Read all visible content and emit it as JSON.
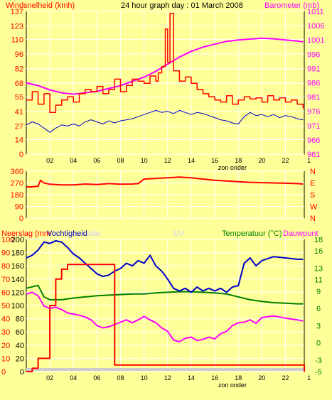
{
  "header": {
    "left_label": "Windsnelheid (kmh)",
    "title": "24 hour graph day : 01 March 2008",
    "right_label": "Barometer (mb)"
  },
  "bottom_labels": {
    "neerslag": "Neerslag (mm",
    "vochtigheid": "Vochtigheid",
    "solar": "olar",
    "uv": "UV",
    "temperatuur": "Temperatuur (°C)",
    "dauwpunt": "Dauwpunt"
  },
  "colors": {
    "background": "#ffff99",
    "plot_border": "#000000",
    "grid": "#ffffff",
    "wind_gust": "#ff0000",
    "wind_avg": "#0000cc",
    "barometer": "#ff00ff",
    "wind_dir": "#ff0000",
    "rain": "#ff0000",
    "humidity": "#0000cc",
    "temperature": "#008000",
    "dewpoint": "#ff00ff",
    "left_axis_text": "#ff0000",
    "right_axis_text_top": "#ff00ff",
    "right_axis_text_bottom": "#008000",
    "uv_solar_text": "#ccccff"
  },
  "chart_data": [
    {
      "type": "line",
      "name": "wind-barometer",
      "x_tick_labels": [
        "02",
        "04",
        "06",
        "08",
        "10",
        "12",
        "14",
        "16",
        "18",
        "20",
        "22",
        "1"
      ],
      "x_caption": "zon onder",
      "ylim": [
        0,
        137
      ],
      "y_ticks": [
        0,
        14,
        27,
        41,
        55,
        68,
        82,
        96,
        110,
        123,
        137
      ],
      "y2lim": [
        961,
        1011
      ],
      "y2_ticks": [
        961,
        966,
        971,
        976,
        981,
        986,
        991,
        996,
        1001,
        1006,
        1011
      ],
      "series": [
        {
          "name": "Windsnelheid (kmh)",
          "axis": "left",
          "x": [
            0,
            0.5,
            1,
            1.5,
            2,
            2.5,
            3,
            3.5,
            4,
            4.5,
            5,
            5.5,
            6,
            6.5,
            7,
            7.5,
            8,
            8.5,
            9,
            9.5,
            10,
            10.5,
            11,
            11.2,
            11.5,
            11.8,
            12,
            12.2,
            12.5,
            13,
            13.5,
            14,
            14.5,
            15,
            15.5,
            16,
            16.5,
            17,
            17.5,
            18,
            18.5,
            19,
            19.5,
            20,
            20.5,
            21,
            21.5,
            22,
            22.5,
            23,
            23.5
          ],
          "values": [
            52,
            60,
            48,
            58,
            40,
            47,
            52,
            55,
            50,
            58,
            62,
            60,
            65,
            58,
            62,
            72,
            60,
            66,
            72,
            70,
            68,
            75,
            70,
            78,
            84,
            120,
            88,
            135,
            80,
            70,
            74,
            68,
            62,
            58,
            55,
            52,
            50,
            56,
            48,
            52,
            55,
            53,
            54,
            50,
            56,
            52,
            54,
            50,
            52,
            48,
            44
          ]
        },
        {
          "name": "Gemiddelde wind (kmh)",
          "axis": "left",
          "x": [
            0,
            0.5,
            1,
            1.5,
            2,
            2.5,
            3,
            3.5,
            4,
            4.5,
            5,
            5.5,
            6,
            6.5,
            7,
            7.5,
            8,
            8.5,
            9,
            9.5,
            10,
            10.5,
            11,
            11.5,
            12,
            12.5,
            13,
            13.5,
            14,
            14.5,
            15,
            15.5,
            16,
            16.5,
            17,
            17.5,
            18,
            18.5,
            19,
            19.5,
            20,
            20.5,
            21,
            21.5,
            22,
            22.5,
            23,
            23.5
          ],
          "values": [
            28,
            31,
            29,
            25,
            21,
            25,
            28,
            27,
            29,
            27,
            31,
            33,
            31,
            29,
            32,
            30,
            32,
            33,
            34,
            36,
            38,
            40,
            42,
            40,
            41,
            39,
            42,
            40,
            38,
            40,
            39,
            37,
            35,
            33,
            32,
            30,
            29,
            36,
            40,
            37,
            38,
            36,
            38,
            35,
            37,
            36,
            34,
            33
          ]
        },
        {
          "name": "Barometer (mb)",
          "axis": "right",
          "x": [
            0,
            1,
            2,
            3,
            4,
            5,
            6,
            7,
            8,
            9,
            10,
            11,
            12,
            13,
            14,
            15,
            16,
            17,
            18,
            19,
            20,
            21,
            22,
            23,
            23.5
          ],
          "values": [
            986,
            985,
            983.5,
            982.5,
            982,
            982.5,
            983,
            984,
            985,
            986.5,
            988,
            990,
            992.5,
            995,
            997,
            998.5,
            999.5,
            1000.5,
            1001,
            1001.3,
            1001.6,
            1001.4,
            1001,
            1000.6,
            1000.3
          ]
        }
      ]
    },
    {
      "type": "line",
      "name": "wind-direction",
      "ylim": [
        0,
        360
      ],
      "y_ticks": [
        0,
        90,
        180,
        270,
        360
      ],
      "y2_tick_labels": [
        "N",
        "W",
        "S",
        "E",
        "N"
      ],
      "series": [
        {
          "name": "Windrichting",
          "x": [
            0,
            0.5,
            1,
            1.2,
            1.5,
            2,
            3,
            4,
            5,
            6,
            7,
            8,
            9,
            9.5,
            10,
            11,
            12,
            13,
            14,
            15,
            16,
            17,
            18,
            19,
            20,
            21,
            22,
            23,
            23.5
          ],
          "values": [
            240,
            240,
            245,
            290,
            270,
            260,
            255,
            255,
            262,
            258,
            265,
            260,
            262,
            265,
            300,
            305,
            310,
            315,
            310,
            300,
            290,
            285,
            280,
            275,
            272,
            270,
            268,
            265,
            262
          ]
        }
      ]
    },
    {
      "type": "line",
      "name": "rain-humidity-temperature",
      "ylim": [
        0,
        200
      ],
      "y_ticks": [
        0,
        20,
        40,
        60,
        80,
        100,
        120,
        140,
        160,
        180,
        200
      ],
      "y_ticks_b": [
        0,
        10,
        20,
        30,
        40,
        50,
        60,
        70,
        80,
        90,
        100
      ],
      "y2lim": [
        -5,
        18
      ],
      "y2_ticks": [
        -5,
        -3,
        0,
        3,
        6,
        9,
        11,
        13,
        16,
        18
      ],
      "series": [
        {
          "name": "Neerslag (mm)",
          "axis": "left",
          "x": [
            0,
            0.5,
            1,
            1.5,
            2,
            2.5,
            3,
            3.5,
            4,
            5,
            6,
            7,
            7.4,
            7.5,
            8,
            10,
            12,
            14,
            16,
            18,
            20,
            22,
            23.5,
            23.6
          ],
          "values": [
            0,
            5,
            20,
            20,
            100,
            140,
            155,
            162,
            162,
            162,
            162,
            162,
            162,
            10,
            10,
            10,
            10,
            10,
            10,
            10,
            10,
            10,
            10,
            0
          ]
        },
        {
          "name": "Vochtigheid",
          "axis": "left_b",
          "x": [
            0,
            0.5,
            1,
            1.5,
            2,
            2.5,
            3,
            3.5,
            4,
            4.5,
            5,
            5.5,
            6,
            6.5,
            7,
            7.5,
            8,
            8.5,
            9,
            9.5,
            10,
            10.5,
            11,
            11.5,
            12,
            12.5,
            13,
            13.5,
            14,
            14.5,
            15,
            15.5,
            16,
            16.5,
            17,
            17.5,
            18,
            18.5,
            19,
            19.5,
            20,
            21,
            22,
            23,
            23.5
          ],
          "values": [
            86,
            88,
            92,
            98,
            97,
            99,
            98,
            94,
            89,
            86,
            82,
            78,
            74,
            72,
            73,
            76,
            78,
            82,
            80,
            84,
            82,
            88,
            80,
            76,
            70,
            63,
            61,
            63,
            60,
            64,
            61,
            63,
            61,
            63,
            60,
            64,
            65,
            82,
            86,
            80,
            84,
            87,
            86,
            85,
            85
          ]
        },
        {
          "name": "Temperatuur (°C)",
          "axis": "right",
          "x": [
            0,
            1,
            1.5,
            2,
            3,
            4,
            5,
            6,
            7,
            8,
            9,
            10,
            11,
            12,
            13,
            14,
            15,
            16,
            17,
            18,
            19,
            20,
            21,
            22,
            23,
            23.5
          ],
          "values": [
            9.5,
            10,
            8,
            7.5,
            7.5,
            7.8,
            8,
            8.2,
            8.3,
            8.4,
            8.5,
            8.5,
            8.7,
            8.8,
            8.9,
            8.9,
            8.8,
            8.7,
            8.5,
            8,
            7.5,
            7.2,
            7,
            6.9,
            6.8,
            6.8
          ]
        },
        {
          "name": "Dauwpunt",
          "axis": "right",
          "x": [
            0,
            0.5,
            1,
            1.5,
            2,
            2.5,
            3,
            3.5,
            4,
            4.5,
            5,
            5.5,
            6,
            6.5,
            7,
            7.5,
            8,
            8.5,
            9,
            9.5,
            10,
            10.5,
            11,
            11.5,
            12,
            12.5,
            13,
            13.5,
            14,
            14.5,
            15,
            15.5,
            16,
            16.5,
            17,
            17.5,
            18,
            18.5,
            19,
            19.5,
            20,
            21,
            22,
            23,
            23.5
          ],
          "values": [
            8.5,
            8.8,
            8.2,
            6.4,
            6,
            6.2,
            5.8,
            5.2,
            5,
            4.8,
            4.5,
            4,
            3,
            2.6,
            2.8,
            3.2,
            3.6,
            4,
            3.5,
            4,
            4.6,
            4,
            3.5,
            2.6,
            2,
            0.5,
            0.2,
            0.8,
            1,
            0.4,
            0.6,
            1,
            0.7,
            1.6,
            2,
            3,
            3.5,
            3.6,
            4,
            3.4,
            4.4,
            4.7,
            4.3,
            4,
            3.8
          ]
        }
      ]
    }
  ]
}
